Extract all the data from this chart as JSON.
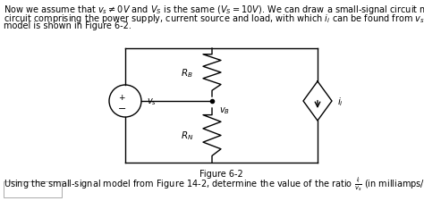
{
  "bg_color": "#ffffff",
  "text_color": "#000000",
  "font_size_text": 7.0,
  "figure_label": "Figure 6-2"
}
